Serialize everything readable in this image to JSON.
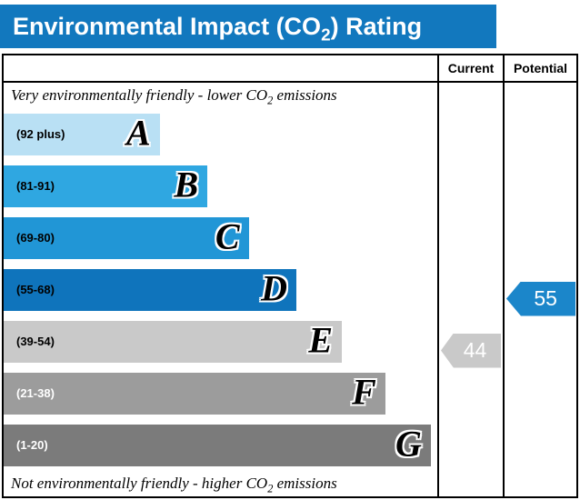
{
  "title": {
    "prefix": "Environmental Impact (CO",
    "sub": "2",
    "suffix": ") Rating"
  },
  "colors": {
    "header_bg": "#1278be",
    "border": "#000000",
    "current_arrow": "#c9c9c9",
    "potential_arrow": "#1b86ca"
  },
  "columns": {
    "current": "Current",
    "potential": "Potential"
  },
  "captions": {
    "top": {
      "prefix": "Very environmentally friendly - lower CO",
      "sub": "2",
      "suffix": " emissions"
    },
    "bottom": {
      "prefix": "Not environmentally friendly - higher CO",
      "sub": "2",
      "suffix": " emissions"
    }
  },
  "bands": [
    {
      "letter": "A",
      "range": "(92 plus)",
      "color": "#b9e0f4",
      "width_pct": 36,
      "label_color": "#000000"
    },
    {
      "letter": "B",
      "range": "(81-91)",
      "color": "#2fa7e1",
      "width_pct": 47,
      "label_color": "#000000"
    },
    {
      "letter": "C",
      "range": "(69-80)",
      "color": "#2196d6",
      "width_pct": 56.5,
      "label_color": "#000000"
    },
    {
      "letter": "D",
      "range": "(55-68)",
      "color": "#0f74bc",
      "width_pct": 67.5,
      "label_color": "#000000"
    },
    {
      "letter": "E",
      "range": "(39-54)",
      "color": "#c9c9c9",
      "width_pct": 78,
      "label_color": "#000000"
    },
    {
      "letter": "F",
      "range": "(21-38)",
      "color": "#9c9c9c",
      "width_pct": 88,
      "label_color": "#ffffff"
    },
    {
      "letter": "G",
      "range": "(1-20)",
      "color": "#7b7b7b",
      "width_pct": 98.5,
      "label_color": "#ffffff"
    }
  ],
  "ratings": {
    "current": {
      "value": "44",
      "band": "E",
      "color": "#c9c9c9"
    },
    "potential": {
      "value": "55",
      "band": "D",
      "color": "#1b86ca"
    }
  },
  "chart_data": {
    "type": "bar",
    "title": "Environmental Impact (CO2) Rating",
    "categories": [
      "A (92 plus)",
      "B (81-91)",
      "C (69-80)",
      "D (55-68)",
      "E (39-54)",
      "F (21-38)",
      "G (1-20)"
    ],
    "values": [
      36,
      47,
      56.5,
      67.5,
      78,
      88,
      98.5
    ],
    "value_meaning": "relative bar width percent of chart area",
    "band_colors": [
      "#b9e0f4",
      "#2fa7e1",
      "#2196d6",
      "#0f74bc",
      "#c9c9c9",
      "#9c9c9c",
      "#7b7b7b"
    ],
    "annotations": [
      {
        "label": "Current",
        "value": 44,
        "band": "E"
      },
      {
        "label": "Potential",
        "value": 55,
        "band": "D"
      }
    ],
    "notes": [
      "Very environmentally friendly - lower CO2 emissions",
      "Not environmentally friendly - higher CO2 emissions"
    ],
    "legend_position": "none",
    "grid": false
  }
}
